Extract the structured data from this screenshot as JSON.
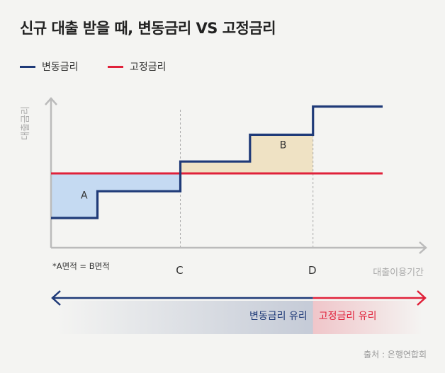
{
  "title": "신규 대출 받을 때, 변동금리 VS 고정금리",
  "colors": {
    "variable": "#1f3a78",
    "fixed": "#e0213a",
    "area_a": "#c5daf2",
    "area_b": "#efe2c4",
    "axis": "#bbbbbb"
  },
  "chart_data": {
    "type": "line",
    "series": [
      {
        "name": "변동금리",
        "shape": "step",
        "x": [
          0,
          0.14,
          0.14,
          0.39,
          0.39,
          0.6,
          0.6,
          0.79,
          0.79,
          1.0
        ],
        "y": [
          0.2,
          0.2,
          0.38,
          0.38,
          0.58,
          0.58,
          0.76,
          0.76,
          0.95,
          0.95
        ]
      },
      {
        "name": "고정금리",
        "shape": "flat",
        "x": [
          0,
          1.0
        ],
        "y": [
          0.5,
          0.5
        ]
      }
    ],
    "regions": [
      {
        "label": "A",
        "x0": 0,
        "x1": 0.39,
        "meaning": "변동금리 below 고정금리"
      },
      {
        "label": "B",
        "x0": 0.39,
        "x1": 0.79,
        "meaning": "변동금리 above 고정금리"
      }
    ],
    "markers": [
      {
        "label": "C",
        "x": 0.39
      },
      {
        "label": "D",
        "x": 0.79
      }
    ],
    "xlabel": "대출이용기간",
    "ylabel": "대출금리",
    "note": "*A면적 = B면적",
    "advantage": {
      "variable": "변동금리 유리",
      "fixed": "고정금리 유리"
    }
  },
  "source": "출처 : 은행연합회"
}
